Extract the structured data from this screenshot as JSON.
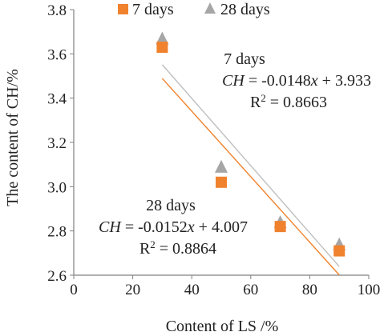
{
  "chart_data": {
    "type": "scatter",
    "xlabel": "Content of LS /%",
    "ylabel": "The content of CH/%",
    "xlim": [
      0,
      100
    ],
    "ylim": [
      2.6,
      3.8
    ],
    "x_ticks": [
      "0",
      "20",
      "40",
      "60",
      "80",
      "100"
    ],
    "y_ticks": [
      "2.6",
      "2.8",
      "3.0",
      "3.2",
      "3.4",
      "3.6",
      "3.8"
    ],
    "x_tick_values": [
      0,
      20,
      40,
      60,
      80,
      100
    ],
    "y_tick_values": [
      2.6,
      2.8,
      3.0,
      3.2,
      3.4,
      3.6,
      3.8
    ],
    "grid": false,
    "legend_position": "top",
    "series": [
      {
        "name": "7 days",
        "marker": "square",
        "color": "#F0822E",
        "x": [
          30,
          50,
          70,
          90
        ],
        "y": [
          3.63,
          3.02,
          2.82,
          2.71
        ],
        "trend": {
          "slope": -0.0148,
          "intercept": 3.933,
          "x_range": [
            30,
            90
          ],
          "line_color": "#F0822E"
        }
      },
      {
        "name": "28 days",
        "marker": "triangle",
        "color": "#A6A6A6",
        "x": [
          30,
          50,
          70,
          90
        ],
        "y": [
          3.67,
          3.09,
          2.84,
          2.74
        ],
        "trend": {
          "slope": -0.0152,
          "intercept": 4.007,
          "x_range": [
            30,
            90
          ],
          "line_color": "#BFBFBF"
        }
      }
    ],
    "annotations": {
      "seven_days": {
        "label": "7 days",
        "eq_var": "CH",
        "eq_mid": " = -0.0148",
        "eq_x": "x",
        "eq_tail": " + 3.933",
        "r2_pre": "R",
        "r2_sup": "2",
        "r2_post": " = 0.8663"
      },
      "twenty_eight_days": {
        "label": "28 days",
        "eq_var": "CH",
        "eq_mid": " = -0.0152",
        "eq_x": "x",
        "eq_tail": " + 4.007",
        "r2_pre": "R",
        "r2_sup": "2",
        "r2_post": " = 0.8864"
      }
    }
  }
}
